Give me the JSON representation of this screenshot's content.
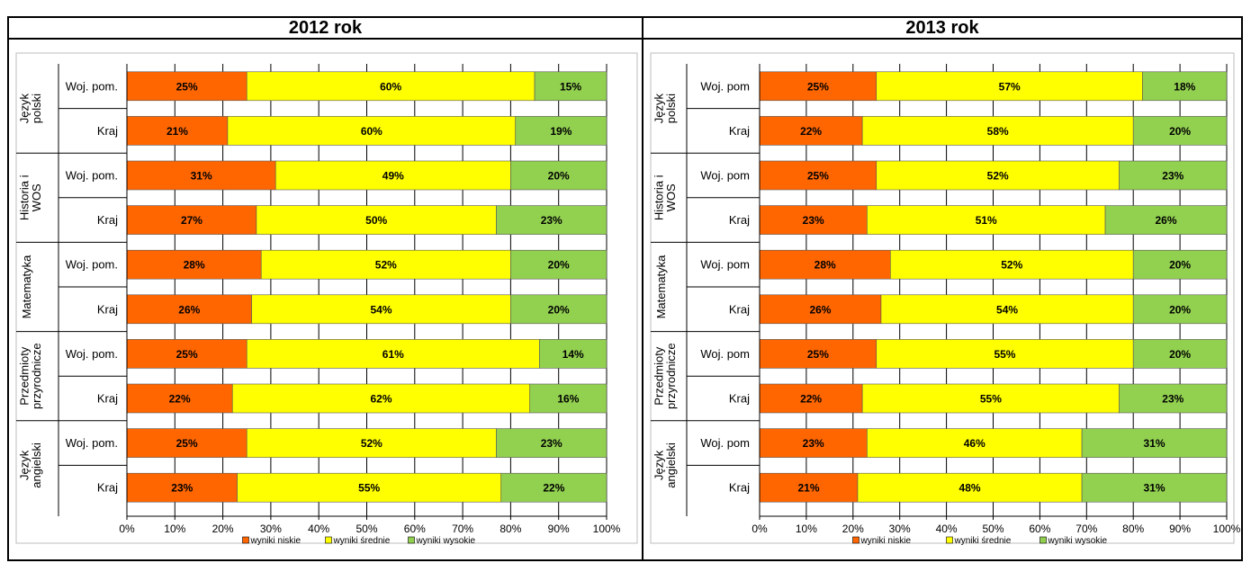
{
  "colors": {
    "low": "#ff6600",
    "mid": "#ffff00",
    "high": "#92d050",
    "grid": "#000000"
  },
  "chart_data": [
    {
      "type": "bar",
      "orientation": "horizontal",
      "stacked": true,
      "title": "2012 rok",
      "xticks": [
        "0%",
        "10%",
        "20%",
        "30%",
        "40%",
        "50%",
        "60%",
        "70%",
        "80%",
        "90%",
        "100%"
      ],
      "xlim": [
        0,
        100
      ],
      "legend": {
        "placement": "bottom",
        "entries": [
          "wyniki niskie",
          "wyniki średnie",
          "wyniki wysokie"
        ]
      },
      "groups": [
        {
          "name": "Język polski",
          "rows": [
            {
              "label": "Woj. pom.",
              "values": [
                25,
                60,
                15
              ]
            },
            {
              "label": "Kraj",
              "values": [
                21,
                60,
                19
              ]
            }
          ]
        },
        {
          "name": "Historia i WOS",
          "rows": [
            {
              "label": "Woj. pom.",
              "values": [
                31,
                49,
                20
              ]
            },
            {
              "label": "Kraj",
              "values": [
                27,
                50,
                23
              ]
            }
          ]
        },
        {
          "name": "Matematyka",
          "rows": [
            {
              "label": "Woj. pom.",
              "values": [
                28,
                52,
                20
              ]
            },
            {
              "label": "Kraj",
              "values": [
                26,
                54,
                20
              ]
            }
          ]
        },
        {
          "name": "Przedmioty przyrodnicze",
          "rows": [
            {
              "label": "Woj. pom.",
              "values": [
                25,
                61,
                14
              ]
            },
            {
              "label": "Kraj",
              "values": [
                22,
                62,
                16
              ]
            }
          ]
        },
        {
          "name": "Język angielski",
          "rows": [
            {
              "label": "Woj. pom.",
              "values": [
                25,
                52,
                23
              ]
            },
            {
              "label": "Kraj",
              "values": [
                23,
                55,
                22
              ]
            }
          ]
        }
      ]
    },
    {
      "type": "bar",
      "orientation": "horizontal",
      "stacked": true,
      "title": "2013 rok",
      "xticks": [
        "0%",
        "10%",
        "20%",
        "30%",
        "40%",
        "50%",
        "60%",
        "70%",
        "80%",
        "90%",
        "100%"
      ],
      "xlim": [
        0,
        100
      ],
      "legend": {
        "placement": "bottom",
        "entries": [
          "wyniki niskie",
          "wyniki średnie",
          "wyniki wysokie"
        ]
      },
      "groups": [
        {
          "name": "Język polski",
          "rows": [
            {
              "label": "Woj. pom",
              "values": [
                25,
                57,
                18
              ]
            },
            {
              "label": "Kraj",
              "values": [
                22,
                58,
                20
              ]
            }
          ]
        },
        {
          "name": "Historia i WOS",
          "rows": [
            {
              "label": "Woj. pom",
              "values": [
                25,
                52,
                23
              ]
            },
            {
              "label": "Kraj",
              "values": [
                23,
                51,
                26
              ]
            }
          ]
        },
        {
          "name": "Matematyka",
          "rows": [
            {
              "label": "Woj. pom",
              "values": [
                28,
                52,
                20
              ]
            },
            {
              "label": "Kraj",
              "values": [
                26,
                54,
                20
              ]
            }
          ]
        },
        {
          "name": "Przedmioty przyrodnicze",
          "rows": [
            {
              "label": "Woj. pom",
              "values": [
                25,
                55,
                20
              ]
            },
            {
              "label": "Kraj",
              "values": [
                22,
                55,
                23
              ]
            }
          ]
        },
        {
          "name": "Język angielski",
          "rows": [
            {
              "label": "Woj. pom",
              "values": [
                23,
                46,
                31
              ]
            },
            {
              "label": "Kraj",
              "values": [
                21,
                48,
                31
              ]
            }
          ]
        }
      ]
    }
  ]
}
